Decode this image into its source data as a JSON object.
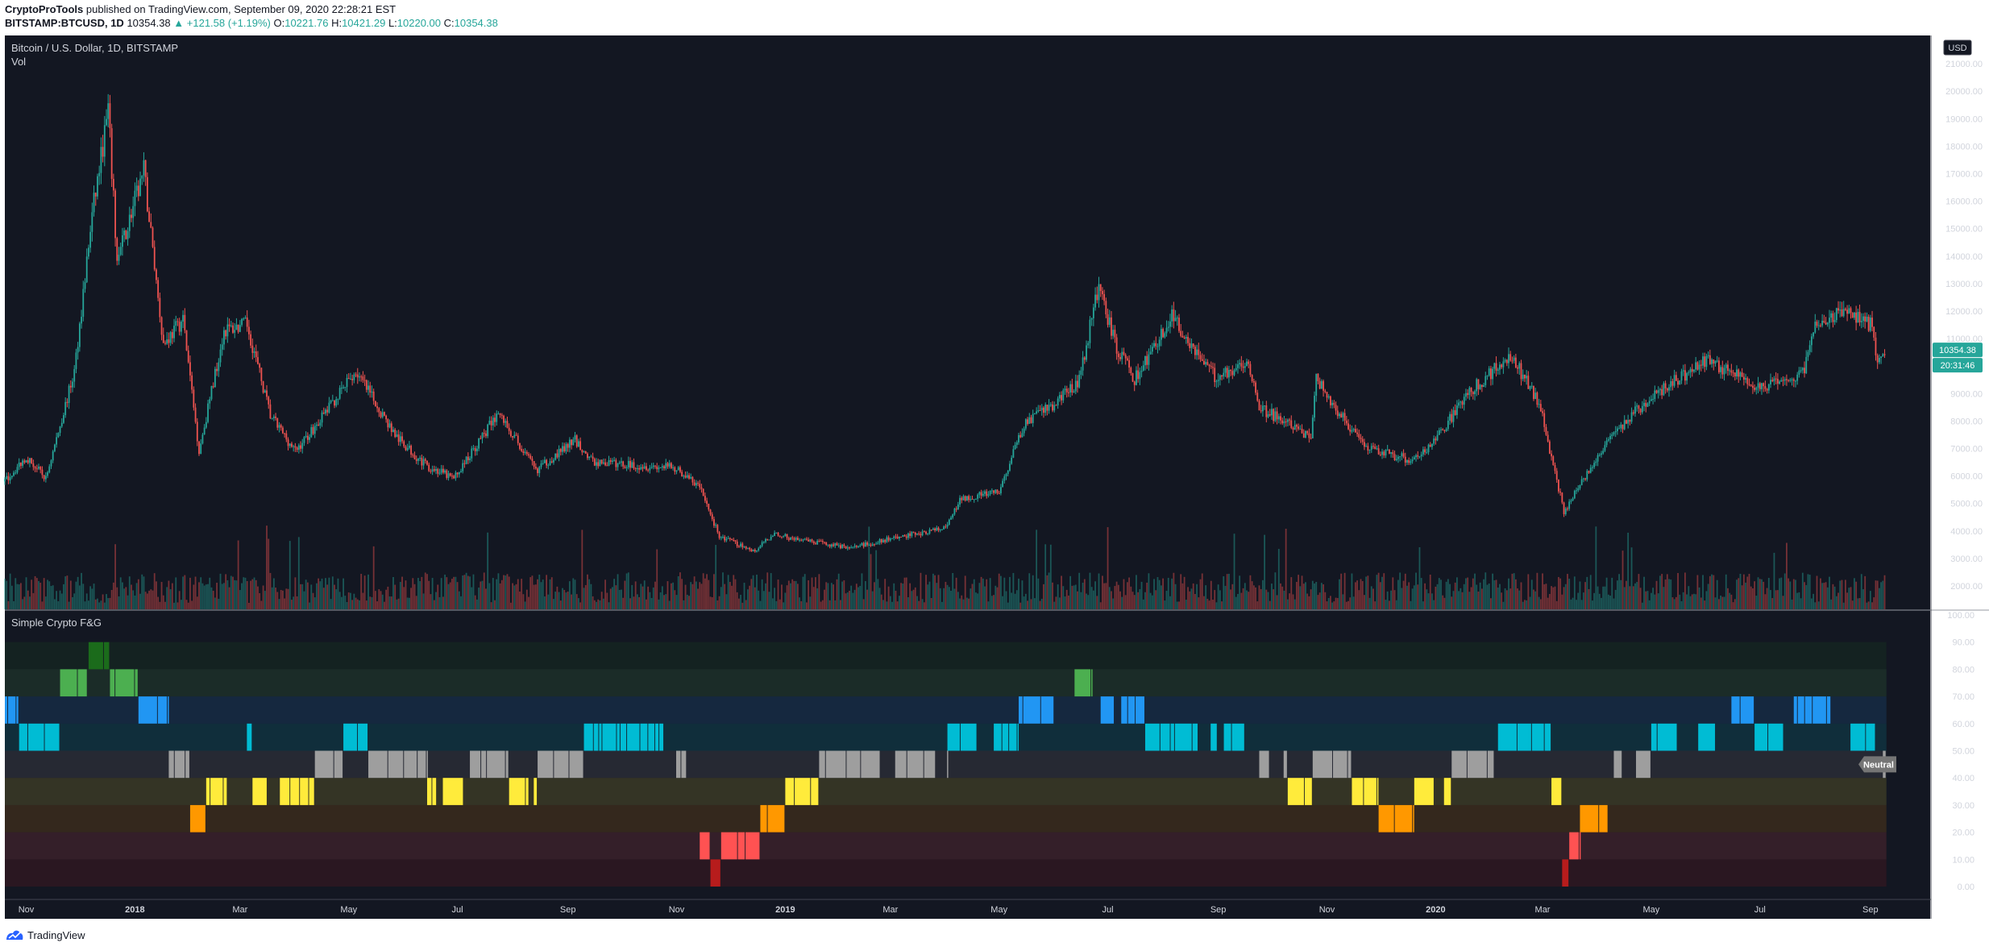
{
  "header": {
    "author": "CryptoProTools",
    "published_text": "published on TradingView.com, September 09, 2020 22:28:21 EST",
    "symbol": "BITSTAMP:BTCUSD, 1D",
    "last": "10354.38",
    "change": "▲ +121.58 (+1.19%)",
    "o_label": "O:",
    "o": "10221.76",
    "h_label": "H:",
    "h": "10421.29",
    "l_label": "L:",
    "l": "10220.00",
    "c_label": "C:",
    "c": "10354.38"
  },
  "main_pane": {
    "title": "Bitcoin / U.S. Dollar, 1D, BITSTAMP",
    "vol_label": "Vol",
    "currency": "USD",
    "price_tag": "10354.38",
    "countdown_tag": "20:31:46"
  },
  "indicator_pane": {
    "title": "Simple Crypto F&G",
    "state_tag": "Neutral"
  },
  "footer": {
    "brand": "TradingView"
  },
  "colors": {
    "background": "#131722",
    "up": "#26a69a",
    "down": "#ef5350",
    "extreme_greed": "#1b6b1b",
    "greed": "#4caf50",
    "high_blue": "#2196f3",
    "cyan": "#00bcd4",
    "neutral": "#9e9e9e",
    "yellow": "#ffeb3b",
    "orange": "#ff9800",
    "red": "#ff5252",
    "extreme_fear": "#b71c1c"
  },
  "chart_data": [
    {
      "type": "candlestick",
      "title": "Bitcoin / U.S. Dollar, 1D, BITSTAMP",
      "x_ticks": [
        "Nov",
        "2018",
        "Mar",
        "May",
        "Jul",
        "Sep",
        "Nov",
        "2019",
        "Mar",
        "May",
        "Jul",
        "Sep",
        "Nov",
        "2020",
        "Mar",
        "May",
        "Jul",
        "Sep"
      ],
      "y_ticks": [
        "21000.00",
        "20000.00",
        "19000.00",
        "18000.00",
        "17000.00",
        "16000.00",
        "15000.00",
        "14000.00",
        "13000.00",
        "12000.00",
        "11000.00",
        "9000.00",
        "8000.00",
        "7000.00",
        "6000.00",
        "5000.00",
        "4000.00",
        "3000.00",
        "2000.00"
      ],
      "ylim": [
        1500,
        21500
      ],
      "price_path": [
        {
          "date": "2017-10-20",
          "price": 5800
        },
        {
          "date": "2017-11-01",
          "price": 6700
        },
        {
          "date": "2017-11-12",
          "price": 5900
        },
        {
          "date": "2017-11-28",
          "price": 9800
        },
        {
          "date": "2017-12-08",
          "price": 15500
        },
        {
          "date": "2017-12-17",
          "price": 19300
        },
        {
          "date": "2017-12-22",
          "price": 13800
        },
        {
          "date": "2018-01-06",
          "price": 17100
        },
        {
          "date": "2018-01-17",
          "price": 10800
        },
        {
          "date": "2018-01-28",
          "price": 11700
        },
        {
          "date": "2018-02-06",
          "price": 6900
        },
        {
          "date": "2018-02-20",
          "price": 11300
        },
        {
          "date": "2018-03-05",
          "price": 11500
        },
        {
          "date": "2018-03-18",
          "price": 8200
        },
        {
          "date": "2018-04-01",
          "price": 6900
        },
        {
          "date": "2018-04-12",
          "price": 7800
        },
        {
          "date": "2018-05-05",
          "price": 9800
        },
        {
          "date": "2018-05-28",
          "price": 7400
        },
        {
          "date": "2018-06-13",
          "price": 6400
        },
        {
          "date": "2018-06-29",
          "price": 5900
        },
        {
          "date": "2018-07-24",
          "price": 8300
        },
        {
          "date": "2018-08-14",
          "price": 6200
        },
        {
          "date": "2018-09-05",
          "price": 7300
        },
        {
          "date": "2018-09-15",
          "price": 6500
        },
        {
          "date": "2018-10-31",
          "price": 6300
        },
        {
          "date": "2018-11-14",
          "price": 5600
        },
        {
          "date": "2018-11-25",
          "price": 3800
        },
        {
          "date": "2018-12-15",
          "price": 3250
        },
        {
          "date": "2018-12-25",
          "price": 3900
        },
        {
          "date": "2019-01-10",
          "price": 3650
        },
        {
          "date": "2019-02-07",
          "price": 3400
        },
        {
          "date": "2019-03-15",
          "price": 3900
        },
        {
          "date": "2019-04-01",
          "price": 4100
        },
        {
          "date": "2019-04-10",
          "price": 5200
        },
        {
          "date": "2019-05-01",
          "price": 5400
        },
        {
          "date": "2019-05-15",
          "price": 7900
        },
        {
          "date": "2019-06-01",
          "price": 8600
        },
        {
          "date": "2019-06-15",
          "price": 9500
        },
        {
          "date": "2019-06-26",
          "price": 13000
        },
        {
          "date": "2019-07-05",
          "price": 10800
        },
        {
          "date": "2019-07-16",
          "price": 9500
        },
        {
          "date": "2019-08-06",
          "price": 11800
        },
        {
          "date": "2019-08-30",
          "price": 9600
        },
        {
          "date": "2019-09-18",
          "price": 10200
        },
        {
          "date": "2019-09-24",
          "price": 8500
        },
        {
          "date": "2019-10-23",
          "price": 7400
        },
        {
          "date": "2019-10-26",
          "price": 9500
        },
        {
          "date": "2019-11-22",
          "price": 7000
        },
        {
          "date": "2019-12-18",
          "price": 6600
        },
        {
          "date": "2019-12-31",
          "price": 7200
        },
        {
          "date": "2020-01-19",
          "price": 9000
        },
        {
          "date": "2020-02-12",
          "price": 10400
        },
        {
          "date": "2020-02-28",
          "price": 8700
        },
        {
          "date": "2020-03-13",
          "price": 4700
        },
        {
          "date": "2020-04-06",
          "price": 7300
        },
        {
          "date": "2020-05-01",
          "price": 8900
        },
        {
          "date": "2020-06-01",
          "price": 10200
        },
        {
          "date": "2020-07-01",
          "price": 9200
        },
        {
          "date": "2020-07-25",
          "price": 9700
        },
        {
          "date": "2020-08-01",
          "price": 11500
        },
        {
          "date": "2020-08-17",
          "price": 12000
        },
        {
          "date": "2020-09-02",
          "price": 11500
        },
        {
          "date": "2020-09-05",
          "price": 10000
        },
        {
          "date": "2020-09-09",
          "price": 10354
        }
      ]
    },
    {
      "type": "bar",
      "title": "Simple Crypto F&G",
      "y_ticks": [
        "100.00",
        "90.00",
        "80.00",
        "70.00",
        "60.00",
        "50.00",
        "40.00",
        "30.00",
        "20.00",
        "10.00",
        "0.00"
      ],
      "ylim": [
        0,
        100
      ],
      "bands": [
        {
          "range": [
            0,
            10
          ],
          "color": "#b71c1c"
        },
        {
          "range": [
            10,
            20
          ],
          "color": "#ff5252"
        },
        {
          "range": [
            20,
            30
          ],
          "color": "#ff9800"
        },
        {
          "range": [
            30,
            40
          ],
          "color": "#ffeb3b"
        },
        {
          "range": [
            40,
            50
          ],
          "color": "#9e9e9e"
        },
        {
          "range": [
            50,
            60
          ],
          "color": "#00bcd4"
        },
        {
          "range": [
            60,
            70
          ],
          "color": "#2196f3"
        },
        {
          "range": [
            70,
            80
          ],
          "color": "#4caf50"
        },
        {
          "range": [
            80,
            90
          ],
          "color": "#1b6b1b"
        }
      ],
      "segments": [
        {
          "start": "2017-10-20",
          "end": "2017-10-28",
          "level": 70
        },
        {
          "start": "2017-10-28",
          "end": "2017-11-20",
          "level": 60
        },
        {
          "start": "2017-11-20",
          "end": "2017-12-06",
          "level": 80
        },
        {
          "start": "2017-12-06",
          "end": "2017-12-18",
          "level": 90
        },
        {
          "start": "2017-12-18",
          "end": "2018-01-03",
          "level": 80
        },
        {
          "start": "2018-01-03",
          "end": "2018-01-20",
          "level": 70
        },
        {
          "start": "2018-01-20",
          "end": "2018-02-01",
          "level": 50
        },
        {
          "start": "2018-02-01",
          "end": "2018-02-10",
          "level": 30
        },
        {
          "start": "2018-02-10",
          "end": "2018-02-22",
          "level": 40
        },
        {
          "start": "2018-02-22",
          "end": "2018-03-08",
          "level": 60
        },
        {
          "start": "2018-03-08",
          "end": "2018-04-12",
          "level": 40
        },
        {
          "start": "2018-04-12",
          "end": "2018-04-28",
          "level": 50
        },
        {
          "start": "2018-04-28",
          "end": "2018-05-12",
          "level": 60
        },
        {
          "start": "2018-05-12",
          "end": "2018-06-14",
          "level": 50
        },
        {
          "start": "2018-06-14",
          "end": "2018-07-08",
          "level": 40
        },
        {
          "start": "2018-07-08",
          "end": "2018-07-30",
          "level": 50
        },
        {
          "start": "2018-07-30",
          "end": "2018-08-15",
          "level": 40
        },
        {
          "start": "2018-08-15",
          "end": "2018-09-10",
          "level": 50
        },
        {
          "start": "2018-09-10",
          "end": "2018-10-25",
          "level": 60
        },
        {
          "start": "2018-10-25",
          "end": "2018-11-14",
          "level": 50
        },
        {
          "start": "2018-11-14",
          "end": "2018-11-20",
          "level": 20
        },
        {
          "start": "2018-11-20",
          "end": "2018-11-26",
          "level": 10
        },
        {
          "start": "2018-11-26",
          "end": "2018-12-18",
          "level": 20
        },
        {
          "start": "2018-12-18",
          "end": "2019-01-01",
          "level": 30
        },
        {
          "start": "2019-01-01",
          "end": "2019-01-20",
          "level": 40
        },
        {
          "start": "2019-01-20",
          "end": "2019-04-02",
          "level": 50
        },
        {
          "start": "2019-04-02",
          "end": "2019-05-12",
          "level": 60
        },
        {
          "start": "2019-05-12",
          "end": "2019-06-01",
          "level": 70
        },
        {
          "start": "2019-06-01",
          "end": "2019-06-22",
          "level": 80
        },
        {
          "start": "2019-06-22",
          "end": "2019-06-27",
          "level": 90
        },
        {
          "start": "2019-06-27",
          "end": "2019-07-22",
          "level": 70
        },
        {
          "start": "2019-07-22",
          "end": "2019-09-24",
          "level": 60
        },
        {
          "start": "2019-09-24",
          "end": "2019-10-10",
          "level": 50
        },
        {
          "start": "2019-10-10",
          "end": "2019-10-24",
          "level": 40
        },
        {
          "start": "2019-10-24",
          "end": "2019-11-15",
          "level": 50
        },
        {
          "start": "2019-11-15",
          "end": "2019-11-30",
          "level": 40
        },
        {
          "start": "2019-11-30",
          "end": "2019-12-20",
          "level": 30
        },
        {
          "start": "2019-12-20",
          "end": "2020-01-10",
          "level": 40
        },
        {
          "start": "2020-01-10",
          "end": "2020-02-05",
          "level": 50
        },
        {
          "start": "2020-02-05",
          "end": "2020-03-06",
          "level": 60
        },
        {
          "start": "2020-03-06",
          "end": "2020-03-12",
          "level": 40
        },
        {
          "start": "2020-03-12",
          "end": "2020-03-16",
          "level": 10
        },
        {
          "start": "2020-03-16",
          "end": "2020-03-22",
          "level": 20
        },
        {
          "start": "2020-03-22",
          "end": "2020-04-10",
          "level": 30
        },
        {
          "start": "2020-04-10",
          "end": "2020-05-01",
          "level": 50
        },
        {
          "start": "2020-05-01",
          "end": "2020-06-15",
          "level": 60
        },
        {
          "start": "2020-06-15",
          "end": "2020-06-28",
          "level": 70
        },
        {
          "start": "2020-06-28",
          "end": "2020-07-20",
          "level": 60
        },
        {
          "start": "2020-07-20",
          "end": "2020-08-10",
          "level": 70
        },
        {
          "start": "2020-08-10",
          "end": "2020-09-04",
          "level": 60
        },
        {
          "start": "2020-09-04",
          "end": "2020-09-08",
          "level": 30
        },
        {
          "start": "2020-09-08",
          "end": "2020-09-10",
          "level": 50
        }
      ]
    }
  ]
}
